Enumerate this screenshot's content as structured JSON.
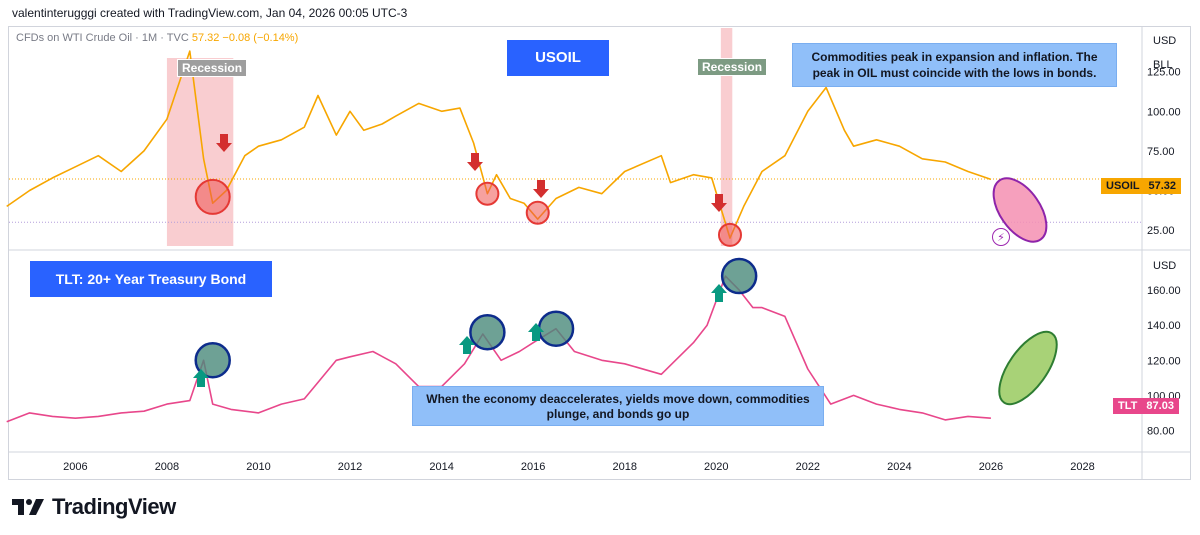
{
  "header": {
    "attribution": "valentinterugggi created with TradingView.com, Jan 04, 2026 00:05 UTC-3"
  },
  "legend": {
    "symbol": "CFDs on WTI Crude Oil · 1M · TVC",
    "last": "57.32",
    "change": "−0.08 (−0.14%)"
  },
  "annotations": {
    "usoil_title": "USOIL",
    "tlt_title": "TLT: 20+ Year Treasury Bond",
    "top_note": "Commodities peak in expansion and inflation. The peak in OIL must coincide with the lows in bonds.",
    "bottom_note": "When the economy deaccelerates, yields move down, commodities plunge, and bonds go up",
    "recession_1": "Recession",
    "recession_2": "Recession"
  },
  "axis": {
    "top_unit": "USD",
    "top_sub": "BLL",
    "bottom_unit": "USD",
    "usoil_tag_label": "USOIL",
    "usoil_tag_value": "57.32",
    "tlt_tag_label": "TLT",
    "tlt_tag_value": "87.03"
  },
  "branding": {
    "logo_text": "TradingView",
    "logo_icon": "tradingview-logo-icon"
  },
  "colors": {
    "oil": "#f7a600",
    "tlt": "#e8478b",
    "recession": "#f8c4c8",
    "up_arrow": "#089981",
    "down_arrow": "#d32f2f",
    "blue_box": "#2962ff",
    "light_box": "#90bff9"
  },
  "chart_data": [
    {
      "type": "line",
      "series": [
        {
          "name": "USOIL",
          "x": [
            2004.5,
            2005,
            2005.5,
            2006,
            2006.5,
            2007,
            2007.5,
            2008,
            2008.5,
            2008.8,
            2009,
            2009.3,
            2009.7,
            2010,
            2010.5,
            2011,
            2011.3,
            2011.7,
            2012,
            2012.3,
            2012.7,
            2013,
            2013.5,
            2014,
            2014.4,
            2014.7,
            2015,
            2015.2,
            2015.5,
            2015.8,
            2016.1,
            2016.5,
            2017,
            2017.5,
            2018,
            2018.8,
            2019,
            2019.5,
            2019.9,
            2020.3,
            2020.6,
            2021,
            2021.5,
            2022,
            2022.4,
            2022.8,
            2023,
            2023.5,
            2024,
            2024.5,
            2025,
            2025.5,
            2026
          ],
          "y": [
            40,
            50,
            58,
            65,
            72,
            62,
            75,
            95,
            138,
            70,
            42,
            50,
            72,
            78,
            82,
            90,
            110,
            85,
            100,
            88,
            92,
            97,
            105,
            100,
            102,
            80,
            48,
            60,
            45,
            42,
            32,
            45,
            52,
            48,
            62,
            72,
            55,
            60,
            58,
            20,
            40,
            62,
            72,
            100,
            115,
            88,
            78,
            82,
            78,
            70,
            68,
            62,
            57
          ]
        }
      ],
      "ylim": [
        15,
        145
      ],
      "ticks_y": [
        "25.00",
        "50.00",
        "75.00",
        "100.00",
        "125.00"
      ],
      "ticks_x": [
        "2006",
        "2008",
        "2010",
        "2012",
        "2014",
        "2016",
        "2018",
        "2020",
        "2022",
        "2024",
        "2026",
        "2028"
      ]
    },
    {
      "type": "line",
      "series": [
        {
          "name": "TLT",
          "x": [
            2004.5,
            2005,
            2005.5,
            2006,
            2006.5,
            2007,
            2007.5,
            2008,
            2008.5,
            2008.8,
            2009,
            2009.4,
            2010,
            2010.5,
            2011,
            2011.7,
            2012,
            2012.5,
            2013,
            2013.5,
            2014,
            2014.5,
            2014.9,
            2015.3,
            2015.7,
            2016,
            2016.5,
            2016.9,
            2017.5,
            2018,
            2018.8,
            2019.5,
            2019.8,
            2020.2,
            2020.5,
            2020.8,
            2021,
            2021.5,
            2022,
            2022.5,
            2023,
            2023.5,
            2024,
            2024.5,
            2025,
            2025.5,
            2026
          ],
          "y": [
            85,
            90,
            88,
            87,
            88,
            90,
            91,
            95,
            97,
            120,
            95,
            92,
            90,
            95,
            98,
            120,
            122,
            125,
            118,
            105,
            105,
            118,
            135,
            120,
            125,
            130,
            138,
            125,
            120,
            118,
            112,
            130,
            140,
            168,
            160,
            150,
            150,
            145,
            115,
            95,
            100,
            95,
            92,
            90,
            86,
            88,
            87
          ]
        }
      ],
      "ylim": [
        70,
        180
      ],
      "ticks_y": [
        "80.00",
        "100.00",
        "120.00",
        "140.00",
        "160.00"
      ]
    }
  ]
}
